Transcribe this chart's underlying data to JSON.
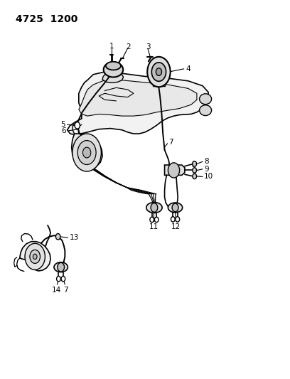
{
  "title": "4725  1200",
  "bg_color": "#ffffff",
  "line_color": "#000000",
  "figsize": [
    4.08,
    5.33
  ],
  "dpi": 100
}
